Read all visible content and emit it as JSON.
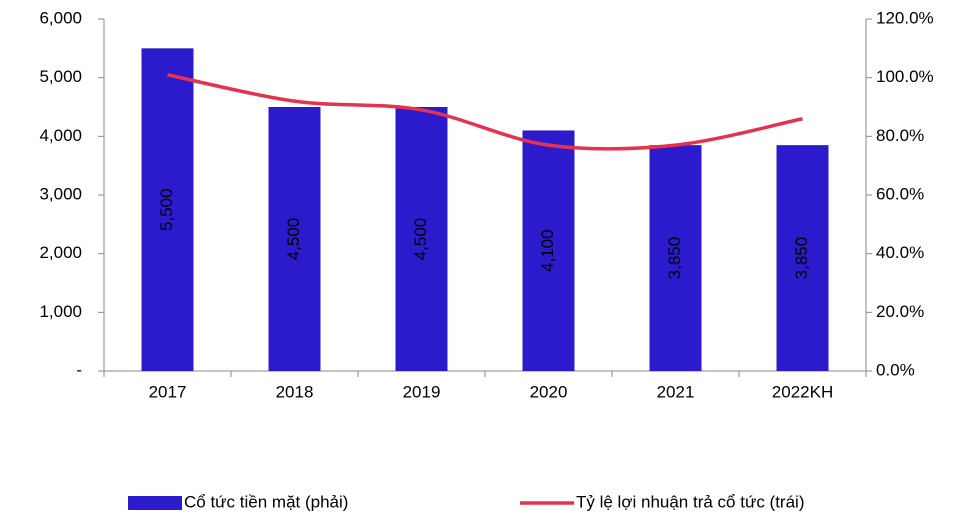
{
  "chart_data": {
    "type": "bar-line",
    "categories": [
      "2017",
      "2018",
      "2019",
      "2020",
      "2021",
      "2022KH"
    ],
    "series": [
      {
        "name": "Cổ tức tiền mặt (phải)",
        "type": "bar",
        "color": "#2b1bcc",
        "values": [
          5500,
          4500,
          4500,
          4100,
          3850,
          3850
        ],
        "value_labels": [
          "5,500",
          "4,500",
          "4,500",
          "4,100",
          "3,850",
          "3,850"
        ]
      },
      {
        "name": "Tỷ lệ lợi nhuận trả cổ tức (trái)",
        "type": "line",
        "axis": "y2",
        "color": "#e5324f",
        "values": [
          101,
          92,
          89,
          77,
          77,
          86
        ]
      }
    ],
    "ylim": [
      0,
      6000
    ],
    "yticks": [
      {
        "value": 0,
        "label": "-"
      },
      {
        "value": 1000,
        "label": "1,000"
      },
      {
        "value": 2000,
        "label": "2,000"
      },
      {
        "value": 3000,
        "label": "3,000"
      },
      {
        "value": 4000,
        "label": "4,000"
      },
      {
        "value": 5000,
        "label": "5,000"
      },
      {
        "value": 6000,
        "label": "6,000"
      }
    ],
    "y2lim": [
      0,
      120
    ],
    "y2ticks": [
      {
        "value": 0,
        "label": "0.0%"
      },
      {
        "value": 20,
        "label": "20.0%"
      },
      {
        "value": 40,
        "label": "40.0%"
      },
      {
        "value": 60,
        "label": "60.0%"
      },
      {
        "value": 80,
        "label": "80.0%"
      },
      {
        "value": 100,
        "label": "100.0%"
      },
      {
        "value": 120,
        "label": "120.0%"
      }
    ],
    "legend": "bottom"
  }
}
